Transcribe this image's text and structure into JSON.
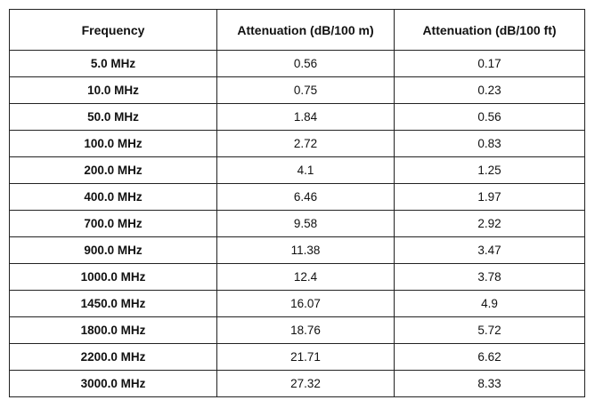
{
  "table": {
    "headers": [
      "Frequency",
      "Attenuation (dB/100 m)",
      "Attenuation (dB/100 ft)"
    ],
    "rows": [
      {
        "frequency": "5.0 MHz",
        "db_100m": "0.56",
        "db_100ft": "0.17"
      },
      {
        "frequency": "10.0 MHz",
        "db_100m": "0.75",
        "db_100ft": "0.23"
      },
      {
        "frequency": "50.0 MHz",
        "db_100m": "1.84",
        "db_100ft": "0.56"
      },
      {
        "frequency": "100.0 MHz",
        "db_100m": "2.72",
        "db_100ft": "0.83"
      },
      {
        "frequency": "200.0 MHz",
        "db_100m": "4.1",
        "db_100ft": "1.25"
      },
      {
        "frequency": "400.0 MHz",
        "db_100m": "6.46",
        "db_100ft": "1.97"
      },
      {
        "frequency": "700.0 MHz",
        "db_100m": "9.58",
        "db_100ft": "2.92"
      },
      {
        "frequency": "900.0 MHz",
        "db_100m": "11.38",
        "db_100ft": "3.47"
      },
      {
        "frequency": "1000.0 MHz",
        "db_100m": "12.4",
        "db_100ft": "3.78"
      },
      {
        "frequency": "1450.0 MHz",
        "db_100m": "16.07",
        "db_100ft": "4.9"
      },
      {
        "frequency": "1800.0 MHz",
        "db_100m": "18.76",
        "db_100ft": "5.72"
      },
      {
        "frequency": "2200.0 MHz",
        "db_100m": "21.71",
        "db_100ft": "6.62"
      },
      {
        "frequency": "3000.0 MHz",
        "db_100m": "27.32",
        "db_100ft": "8.33"
      }
    ]
  }
}
